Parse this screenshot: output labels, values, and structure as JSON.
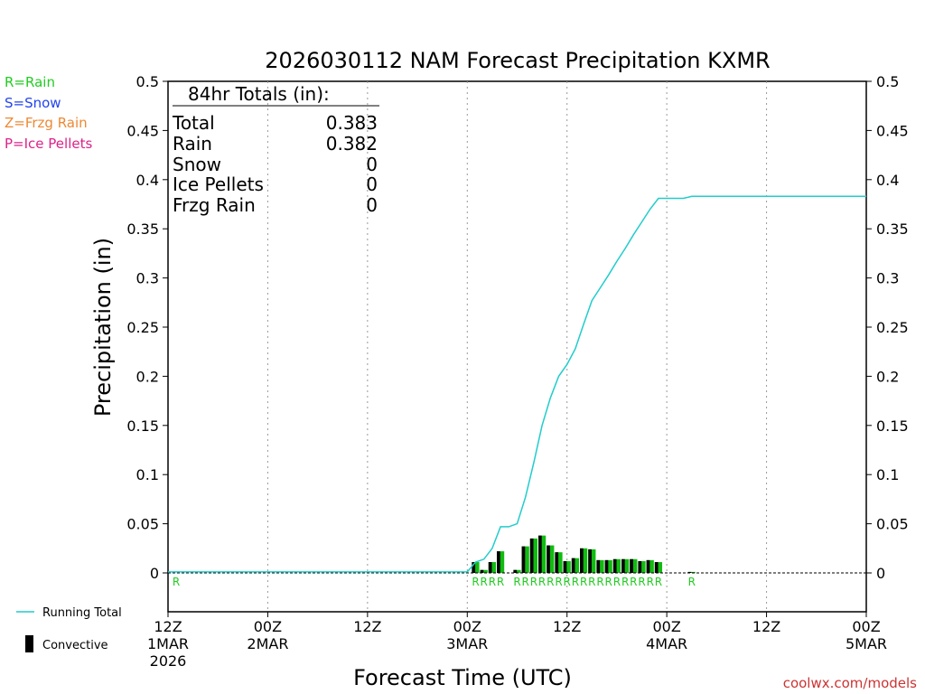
{
  "chart_data": {
    "type": "bar",
    "title": "2026030112 NAM Forecast Precipitation KXMR",
    "xlabel": "Forecast Time (UTC)",
    "ylabel": "Precipitation (in)",
    "ylim": [
      -0.04,
      0.5
    ],
    "xlim_hours": [
      0,
      84
    ],
    "y_ticks": [
      "0",
      "0.05",
      "0.1",
      "0.15",
      "0.2",
      "0.25",
      "0.3",
      "0.35",
      "0.4",
      "0.45",
      "0.5"
    ],
    "x_ticks": [
      {
        "hour": 0,
        "line1": "12Z",
        "line2": "1MAR",
        "line3": "2026"
      },
      {
        "hour": 12,
        "line1": "00Z",
        "line2": "2MAR",
        "line3": ""
      },
      {
        "hour": 24,
        "line1": "12Z",
        "line2": "",
        "line3": ""
      },
      {
        "hour": 36,
        "line1": "00Z",
        "line2": "3MAR",
        "line3": ""
      },
      {
        "hour": 48,
        "line1": "12Z",
        "line2": "",
        "line3": ""
      },
      {
        "hour": 60,
        "line1": "00Z",
        "line2": "4MAR",
        "line3": ""
      },
      {
        "hour": 72,
        "line1": "12Z",
        "line2": "",
        "line3": ""
      },
      {
        "hour": 84,
        "line1": "00Z",
        "line2": "5MAR",
        "line3": ""
      }
    ],
    "totals_header": "84hr Totals (in):",
    "totals": [
      {
        "label": "Total",
        "value": "0.383"
      },
      {
        "label": "Rain",
        "value": "0.382"
      },
      {
        "label": "Snow",
        "value": "0"
      },
      {
        "label": "Ice Pellets",
        "value": "0"
      },
      {
        "label": "Frzg Rain",
        "value": "0"
      }
    ],
    "ptype_legend": [
      {
        "text": "R=Rain",
        "color": "#22cc22"
      },
      {
        "text": "S=Snow",
        "color": "#2244ee"
      },
      {
        "text": "Z=Frzg Rain",
        "color": "#ee8833"
      },
      {
        "text": "P=Ice Pellets",
        "color": "#dd2288"
      }
    ],
    "series_legend": {
      "running_total": "Running Total",
      "convective": "Convective"
    },
    "credit": "coolwx.com/models",
    "bars": [
      {
        "hour": 37,
        "value": 0.011,
        "conv": 0.003,
        "ptype": "R"
      },
      {
        "hour": 38,
        "value": 0.003,
        "conv": 0.003,
        "ptype": "R"
      },
      {
        "hour": 39,
        "value": 0.011,
        "conv": 0.005,
        "ptype": "R"
      },
      {
        "hour": 40,
        "value": 0.022,
        "conv": 0.007,
        "ptype": "R"
      },
      {
        "hour": 41,
        "value": 0.0,
        "conv": 0.0,
        "ptype": ""
      },
      {
        "hour": 42,
        "value": 0.003,
        "conv": 0.003,
        "ptype": "R"
      },
      {
        "hour": 43,
        "value": 0.027,
        "conv": 0.008,
        "ptype": "R"
      },
      {
        "hour": 44,
        "value": 0.035,
        "conv": 0.008,
        "ptype": "R"
      },
      {
        "hour": 45,
        "value": 0.038,
        "conv": 0.01,
        "ptype": "R"
      },
      {
        "hour": 46,
        "value": 0.028,
        "conv": 0.008,
        "ptype": "R"
      },
      {
        "hour": 47,
        "value": 0.021,
        "conv": 0.006,
        "ptype": "R"
      },
      {
        "hour": 48,
        "value": 0.012,
        "conv": 0.005,
        "ptype": "R"
      },
      {
        "hour": 49,
        "value": 0.015,
        "conv": 0.006,
        "ptype": "R"
      },
      {
        "hour": 50,
        "value": 0.025,
        "conv": 0.008,
        "ptype": "R"
      },
      {
        "hour": 51,
        "value": 0.024,
        "conv": 0.008,
        "ptype": "R"
      },
      {
        "hour": 52,
        "value": 0.013,
        "conv": 0.006,
        "ptype": "R"
      },
      {
        "hour": 53,
        "value": 0.013,
        "conv": 0.006,
        "ptype": "R"
      },
      {
        "hour": 54,
        "value": 0.014,
        "conv": 0.006,
        "ptype": "R"
      },
      {
        "hour": 55,
        "value": 0.014,
        "conv": 0.006,
        "ptype": "R"
      },
      {
        "hour": 56,
        "value": 0.014,
        "conv": 0.006,
        "ptype": "R"
      },
      {
        "hour": 57,
        "value": 0.012,
        "conv": 0.006,
        "ptype": "R"
      },
      {
        "hour": 58,
        "value": 0.013,
        "conv": 0.006,
        "ptype": "R"
      },
      {
        "hour": 59,
        "value": 0.011,
        "conv": 0.005,
        "ptype": "R"
      },
      {
        "hour": 63,
        "value": 0.001,
        "conv": 0.001,
        "ptype": "R"
      }
    ],
    "running_total": {
      "hours": [
        0,
        36,
        37,
        38,
        39,
        40,
        41,
        42,
        43,
        44,
        45,
        46,
        47,
        48,
        49,
        50,
        51,
        52,
        53,
        54,
        55,
        56,
        57,
        58,
        59,
        60,
        61,
        62,
        63,
        84
      ],
      "values": [
        0.001,
        0.001,
        0.011,
        0.014,
        0.025,
        0.047,
        0.047,
        0.05,
        0.077,
        0.112,
        0.15,
        0.178,
        0.2,
        0.212,
        0.228,
        0.253,
        0.277,
        0.29,
        0.303,
        0.317,
        0.33,
        0.344,
        0.357,
        0.37,
        0.381,
        0.381,
        0.381,
        0.381,
        0.383,
        0.383
      ]
    },
    "colors": {
      "rain": "#11bb11",
      "running_total": "#22cccc",
      "convective": "#000000"
    }
  }
}
